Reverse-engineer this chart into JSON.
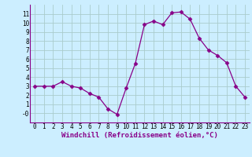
{
  "x": [
    0,
    1,
    2,
    3,
    4,
    5,
    6,
    7,
    8,
    9,
    10,
    11,
    12,
    13,
    14,
    15,
    16,
    17,
    18,
    19,
    20,
    21,
    22,
    23
  ],
  "y": [
    3.0,
    3.0,
    3.0,
    3.5,
    3.0,
    2.8,
    2.2,
    1.8,
    0.5,
    -0.1,
    2.8,
    5.5,
    9.8,
    10.2,
    9.8,
    11.1,
    11.2,
    10.4,
    8.3,
    7.0,
    6.4,
    5.6,
    3.0,
    1.8
  ],
  "line_color": "#880088",
  "marker": "D",
  "marker_size": 2.5,
  "bg_color": "#cceeff",
  "grid_color": "#aacccc",
  "xlabel": "Windchill (Refroidissement éolien,°C)",
  "ylim": [
    -1,
    12
  ],
  "xlim": [
    -0.5,
    23.5
  ],
  "yticks": [
    0,
    1,
    2,
    3,
    4,
    5,
    6,
    7,
    8,
    9,
    10,
    11
  ],
  "xticks": [
    0,
    1,
    2,
    3,
    4,
    5,
    6,
    7,
    8,
    9,
    10,
    11,
    12,
    13,
    14,
    15,
    16,
    17,
    18,
    19,
    20,
    21,
    22,
    23
  ],
  "tick_fontsize": 5.5,
  "xlabel_fontsize": 6.5
}
